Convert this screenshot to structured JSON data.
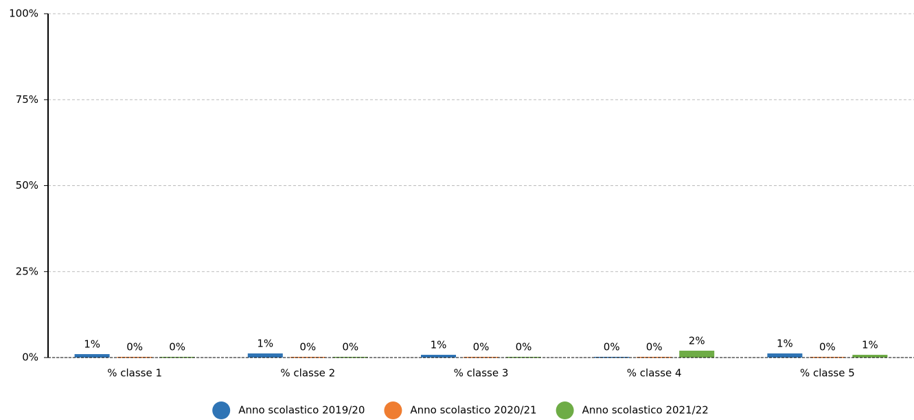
{
  "chart_data": {
    "type": "bar",
    "categories": [
      "% classe 1",
      "% classe 2",
      "% classe 3",
      "% classe 4",
      "% classe 5"
    ],
    "series": [
      {
        "name": "Anno scolastico 2019/20",
        "color": "#2f74b5",
        "values": [
          1.0,
          1.2,
          0.8,
          0.2,
          1.2
        ],
        "value_labels": [
          "1%",
          "1%",
          "1%",
          "0%",
          "1%"
        ]
      },
      {
        "name": "Anno scolastico 2020/21",
        "color": "#ef7d31",
        "values": [
          0.2,
          0.2,
          0.2,
          0.2,
          0.2
        ],
        "value_labels": [
          "0%",
          "0%",
          "0%",
          "0%",
          "0%"
        ]
      },
      {
        "name": "Anno scolastico 2021/22",
        "color": "#6eac46",
        "values": [
          0.2,
          0.2,
          0.2,
          2.0,
          0.8
        ],
        "value_labels": [
          "0%",
          "0%",
          "0%",
          "2%",
          "1%"
        ]
      }
    ],
    "ylim": [
      0,
      100
    ],
    "yticks": [
      {
        "value": 0,
        "label": "0%"
      },
      {
        "value": 25,
        "label": "25%"
      },
      {
        "value": 50,
        "label": "50%"
      },
      {
        "value": 75,
        "label": "75%"
      },
      {
        "value": 100,
        "label": "100%"
      }
    ],
    "grid": true,
    "legend": "bottom"
  }
}
